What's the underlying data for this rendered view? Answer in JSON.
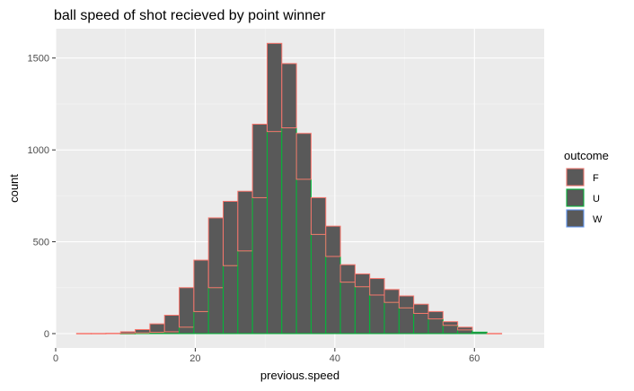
{
  "chart_data": {
    "type": "bar",
    "stacked": true,
    "title": "ball speed of shot recieved by point winner",
    "xlabel": "previous.speed",
    "ylabel": "count",
    "xlim": [
      0,
      70
    ],
    "ylim": [
      0,
      1650
    ],
    "xticks": [
      0,
      20,
      40,
      60
    ],
    "yticks": [
      0,
      500,
      1000,
      1500
    ],
    "bin_edges": [
      3,
      5.1,
      7.2,
      9.3,
      11.4,
      13.5,
      15.6,
      17.7,
      19.8,
      21.9,
      24.0,
      26.1,
      28.2,
      30.3,
      32.4,
      34.5,
      36.6,
      38.7,
      40.8,
      42.9,
      45.0,
      47.1,
      49.2,
      51.3,
      53.4,
      55.5,
      57.6,
      59.7,
      61.8,
      63.9,
      66.0
    ],
    "grid": true,
    "legend_title": "outcome",
    "legend_position": "right",
    "fill_color": "#595959",
    "background_color": "#ebebeb",
    "series": [
      {
        "name": "W",
        "color": "#619CFF",
        "values": [
          0,
          0,
          0,
          0,
          0,
          0,
          0,
          0,
          0,
          0,
          0,
          0,
          0,
          0,
          0,
          0,
          0,
          0,
          0,
          0,
          0,
          0,
          0,
          0,
          0,
          0,
          0,
          0,
          0,
          0
        ]
      },
      {
        "name": "U",
        "color": "#00BA38",
        "values": [
          0,
          0,
          0,
          1,
          4,
          7,
          10,
          35,
          120,
          250,
          370,
          450,
          740,
          1100,
          1120,
          840,
          540,
          420,
          280,
          255,
          210,
          170,
          140,
          110,
          80,
          45,
          20,
          8,
          0,
          0
        ]
      },
      {
        "name": "F",
        "color": "#F8766D",
        "values": [
          1,
          1,
          2,
          9,
          18,
          46,
          90,
          215,
          280,
          380,
          350,
          325,
          400,
          480,
          350,
          250,
          200,
          165,
          95,
          70,
          90,
          70,
          65,
          50,
          40,
          20,
          15,
          0,
          1,
          0
        ]
      }
    ]
  }
}
